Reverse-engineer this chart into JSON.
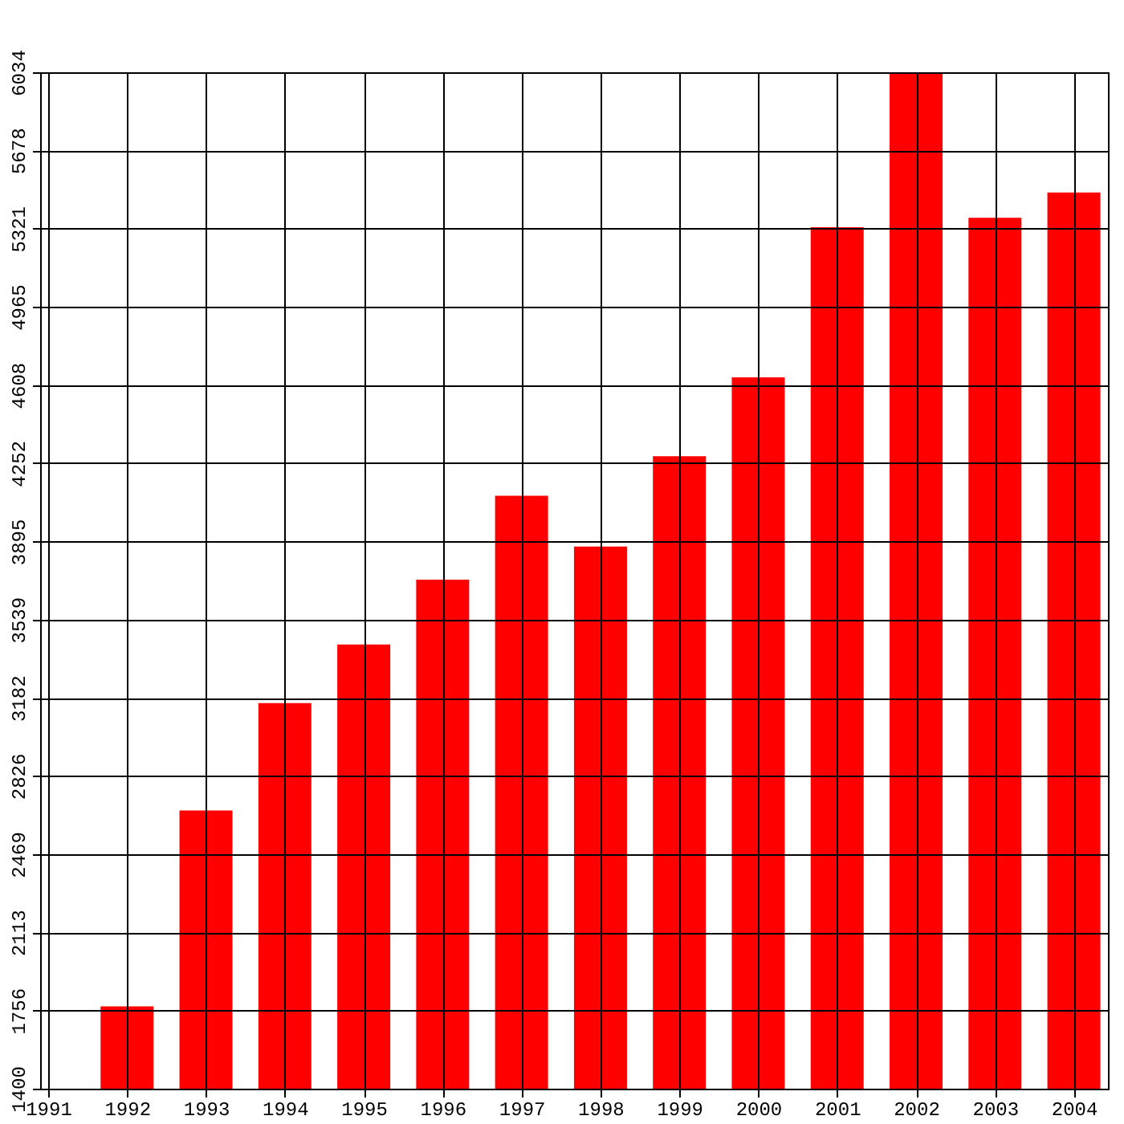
{
  "chart_data": {
    "type": "bar",
    "x": [
      1992,
      1993,
      1994,
      1995,
      1996,
      1997,
      1998,
      1999,
      2000,
      2001,
      2002,
      2003,
      2004
    ],
    "values": [
      1775,
      2668,
      3158,
      3425,
      3721,
      4103,
      3872,
      4283,
      4643,
      5328,
      6034,
      5371,
      5486
    ],
    "color": "#ff0000",
    "xlim": [
      1991,
      2004.33
    ],
    "xticks": [
      1991,
      1992,
      1993,
      1994,
      1995,
      1996,
      1997,
      1998,
      1999,
      2000,
      2001,
      2002,
      2003,
      2004
    ],
    "ylim": [
      1400,
      6034
    ],
    "yticks": [
      1400,
      1756,
      2113,
      2469,
      2826,
      3182,
      3539,
      3895,
      4252,
      4608,
      4965,
      5321,
      5678,
      6034
    ],
    "grid": true
  }
}
